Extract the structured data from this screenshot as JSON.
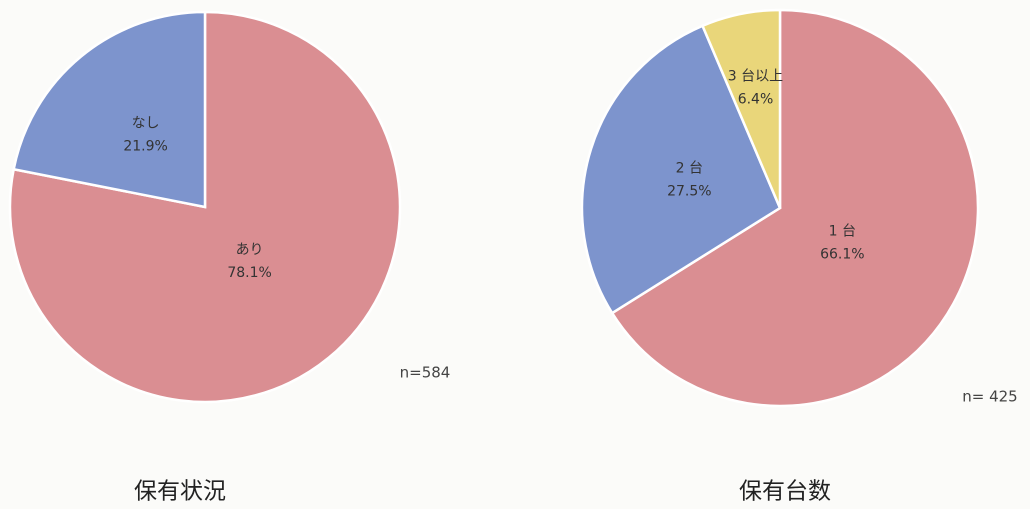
{
  "chart_data": [
    {
      "type": "pie",
      "title": "保有状況",
      "categories": [
        "あり",
        "なし"
      ],
      "values": [
        78.1,
        21.9
      ],
      "value_labels": [
        "78.1%",
        "21.9%"
      ],
      "colors": [
        "#da8e92",
        "#7d94cd"
      ],
      "annotation": "n=584"
    },
    {
      "type": "pie",
      "title": "保有台数",
      "categories": [
        "1 台",
        "2 台",
        "3 台以上"
      ],
      "values": [
        66.1,
        27.5,
        6.4
      ],
      "value_labels": [
        "66.1%",
        "27.5%",
        "6.4%"
      ],
      "colors": [
        "#da8e92",
        "#7d94cd",
        "#e9d67a"
      ],
      "annotation": "n= 425"
    }
  ]
}
